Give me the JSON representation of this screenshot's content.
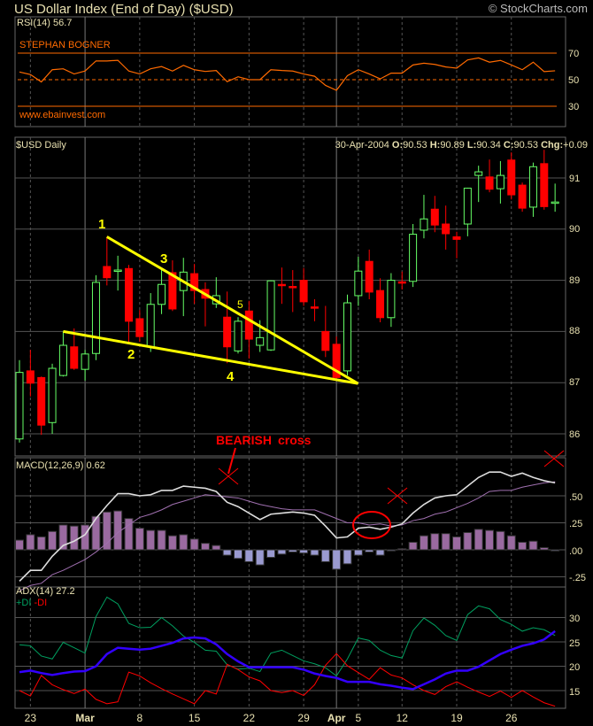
{
  "header": {
    "title": "US Dollar Index (End of Day) ($USD)",
    "copyright": "© StockCharts.com"
  },
  "colors": {
    "background": "#000000",
    "up": "#66ff66",
    "down": "#ff0000",
    "rsi": "#ff6a00",
    "macd": "#dddddd",
    "signal": "#a070b0",
    "histogram_positive": "#9a6aa0",
    "histogram_negative": "#9a9ad0",
    "adx": "#3300ff",
    "plus_di": "#00a060",
    "minus_di": "#ff0000",
    "trendline": "#ffff00",
    "grid": "#555555"
  },
  "chart_data": [
    {
      "type": "line",
      "title": "RSI(14) 56.7",
      "annotations": [
        "STEPHAN BOGNER",
        "www.ebainvest.com"
      ],
      "ylim": [
        10,
        90
      ],
      "reference_lines": [
        70,
        50,
        30
      ],
      "yticks": [
        "70",
        "50",
        "30"
      ],
      "values": [
        55.8,
        53.9,
        48.3,
        57.5,
        58.2,
        54.3,
        56.5,
        64.1,
        64.1,
        64.6,
        56.5,
        54.3,
        58.2,
        59.9,
        56.5,
        60.8,
        57.5,
        56.2,
        56.9,
        48.5,
        52.2,
        50.0,
        50.0,
        57.5,
        56.9,
        56.5,
        54.3,
        52.6,
        45.7,
        42.0,
        53.0,
        57.5,
        54.3,
        50.6,
        54.9,
        54.9,
        61.1,
        62.4,
        61.5,
        59.6,
        58.7,
        64.9,
        66.4,
        63.2,
        64.5,
        61.1,
        57.5,
        63.2,
        56.1,
        56.7
      ]
    },
    {
      "type": "candlestick",
      "title": "$USD Daily",
      "quote": {
        "date": "30-Apr-2004",
        "o_label": "O:",
        "o": "90.53",
        "h_label": "H:",
        "h": "90.89",
        "l_label": "L:",
        "l": "90.34",
        "c_label": "C:",
        "c": "90.53",
        "chg_label": "Chg:",
        "chg": "+0.09"
      },
      "ylim": [
        85.7,
        91.6
      ],
      "yticks": [
        "91",
        "90",
        "89",
        "88",
        "87",
        "86"
      ],
      "grid": true,
      "ohlc": [
        [
          85.9,
          87.44,
          85.83,
          87.2
        ],
        [
          87.23,
          87.64,
          86.73,
          86.99
        ],
        [
          87.1,
          87.12,
          85.98,
          86.17
        ],
        [
          86.22,
          87.37,
          86.0,
          87.28
        ],
        [
          87.14,
          88.0,
          87.12,
          87.73
        ],
        [
          87.7,
          88.06,
          87.25,
          87.28
        ],
        [
          87.26,
          87.64,
          87.04,
          87.56
        ],
        [
          87.57,
          89.1,
          87.44,
          88.96
        ],
        [
          89.27,
          89.85,
          88.9,
          89.05
        ],
        [
          89.2,
          89.48,
          88.8,
          89.2
        ],
        [
          89.23,
          89.3,
          87.8,
          88.2
        ],
        [
          88.25,
          88.42,
          87.8,
          87.9
        ],
        [
          87.7,
          88.75,
          87.6,
          88.53
        ],
        [
          88.53,
          89.2,
          88.34,
          88.92
        ],
        [
          89.15,
          89.39,
          88.4,
          88.44
        ],
        [
          88.8,
          89.44,
          88.3,
          89.16
        ],
        [
          89.13,
          89.32,
          88.54,
          88.8
        ],
        [
          88.82,
          88.96,
          88.1,
          88.65
        ],
        [
          88.54,
          89.06,
          88.46,
          88.7
        ],
        [
          88.28,
          88.78,
          87.38,
          87.7
        ],
        [
          87.62,
          88.28,
          87.57,
          88.2
        ],
        [
          88.4,
          88.6,
          87.47,
          87.85
        ],
        [
          87.73,
          88.22,
          87.6,
          87.88
        ],
        [
          87.64,
          89.0,
          87.62,
          88.99
        ],
        [
          88.92,
          89.25,
          88.54,
          88.9
        ],
        [
          88.88,
          89.2,
          88.38,
          88.87
        ],
        [
          89.0,
          89.24,
          88.5,
          88.58
        ],
        [
          88.48,
          88.63,
          88.2,
          88.47
        ],
        [
          88.0,
          88.5,
          87.5,
          87.63
        ],
        [
          87.75,
          87.9,
          87.08,
          87.1
        ],
        [
          87.23,
          88.72,
          87.14,
          88.56
        ],
        [
          88.7,
          89.46,
          88.5,
          89.18
        ],
        [
          89.37,
          89.6,
          88.63,
          88.77
        ],
        [
          88.8,
          89.04,
          88.18,
          88.27
        ],
        [
          88.27,
          89.14,
          88.09,
          89.0
        ],
        [
          88.97,
          89.17,
          88.82,
          88.96
        ],
        [
          88.98,
          90.1,
          88.87,
          89.9
        ],
        [
          89.98,
          90.67,
          89.82,
          90.2
        ],
        [
          90.39,
          90.65,
          89.94,
          90.08
        ],
        [
          90.1,
          90.46,
          89.6,
          89.91
        ],
        [
          89.85,
          89.95,
          89.43,
          89.8
        ],
        [
          90.1,
          90.81,
          89.86,
          90.8
        ],
        [
          91.05,
          91.24,
          90.53,
          91.12
        ],
        [
          91.02,
          91.36,
          90.72,
          90.78
        ],
        [
          90.79,
          91.33,
          90.5,
          91.05
        ],
        [
          91.35,
          91.5,
          90.58,
          90.67
        ],
        [
          90.86,
          90.91,
          90.34,
          90.41
        ],
        [
          90.43,
          91.3,
          90.24,
          91.22
        ],
        [
          91.28,
          91.55,
          90.38,
          90.44
        ],
        [
          90.53,
          90.89,
          90.34,
          90.53
        ]
      ],
      "filled_up_indices": [
        8
      ],
      "annotations": {
        "wave_labels": [
          "1",
          "2",
          "3",
          "4",
          "5"
        ],
        "upper_trendline": {
          "from_index": 8,
          "from_price": 89.85,
          "to_index": 30,
          "to_price": 87.0
        },
        "lower_trendline": {
          "from_index": 4,
          "from_price": 88.0,
          "to_index": 30,
          "to_price": 87.0
        }
      }
    },
    {
      "type": "bar+line",
      "title": "MACD(12,26,9) 0.62",
      "ylim": [
        -0.33,
        0.85
      ],
      "yticks": [
        ".50",
        ".25",
        ".00",
        "-.25"
      ],
      "annotations": {
        "bearish_label": "BEARISH",
        "cross_label": "cross"
      },
      "macd": [
        -0.29,
        -0.19,
        -0.19,
        -0.06,
        0.04,
        0.08,
        0.14,
        0.29,
        0.41,
        0.52,
        0.52,
        0.5,
        0.51,
        0.55,
        0.55,
        0.59,
        0.58,
        0.57,
        0.54,
        0.44,
        0.4,
        0.34,
        0.28,
        0.33,
        0.34,
        0.35,
        0.34,
        0.32,
        0.22,
        0.11,
        0.12,
        0.2,
        0.21,
        0.19,
        0.21,
        0.24,
        0.34,
        0.42,
        0.48,
        0.5,
        0.51,
        0.59,
        0.67,
        0.72,
        0.72,
        0.68,
        0.71,
        0.67,
        0.64,
        0.62
      ],
      "signal": [
        -0.38,
        -0.33,
        -0.31,
        -0.23,
        -0.19,
        -0.14,
        -0.09,
        -0.02,
        0.06,
        0.16,
        0.23,
        0.3,
        0.33,
        0.37,
        0.42,
        0.45,
        0.48,
        0.51,
        0.5,
        0.49,
        0.48,
        0.45,
        0.42,
        0.4,
        0.38,
        0.37,
        0.37,
        0.37,
        0.33,
        0.29,
        0.25,
        0.25,
        0.23,
        0.24,
        0.22,
        0.23,
        0.27,
        0.29,
        0.33,
        0.35,
        0.39,
        0.43,
        0.48,
        0.54,
        0.55,
        0.55,
        0.58,
        0.6,
        0.62,
        0.63
      ],
      "histogram": [
        0.09,
        0.14,
        0.12,
        0.17,
        0.23,
        0.22,
        0.23,
        0.31,
        0.35,
        0.36,
        0.29,
        0.2,
        0.18,
        0.18,
        0.13,
        0.14,
        0.1,
        0.06,
        0.04,
        -0.05,
        -0.08,
        -0.11,
        -0.14,
        -0.07,
        -0.04,
        -0.02,
        -0.03,
        -0.05,
        -0.11,
        -0.18,
        -0.13,
        -0.05,
        -0.02,
        -0.05,
        -0.01,
        0.01,
        0.07,
        0.13,
        0.15,
        0.15,
        0.12,
        0.16,
        0.19,
        0.18,
        0.17,
        0.13,
        0.07,
        0.08,
        0.02,
        -0.01
      ]
    },
    {
      "type": "line",
      "title": "ADX(14) 27.2",
      "legend": {
        "plus_di": "+DI",
        "minus_di": "-DI"
      },
      "ylim": [
        10,
        36
      ],
      "yticks": [
        "30",
        "25",
        "20",
        "15"
      ],
      "adx": [
        18.8,
        19.1,
        18.6,
        18.2,
        18.6,
        18.9,
        19.0,
        20.0,
        22.5,
        23.8,
        23.6,
        23.4,
        23.6,
        24.2,
        24.8,
        25.7,
        25.9,
        25.7,
        24.5,
        22.5,
        21.0,
        19.8,
        19.8,
        19.8,
        19.8,
        19.8,
        19.3,
        18.5,
        18.0,
        17.6,
        16.8,
        16.8,
        16.8,
        16.3,
        16.0,
        15.6,
        15.3,
        16.3,
        17.3,
        18.5,
        19.1,
        19.1,
        19.9,
        21.2,
        22.5,
        23.4,
        24.2,
        24.7,
        25.5,
        27.2
      ],
      "plus_di": [
        24.4,
        24.2,
        22.1,
        21.5,
        24.9,
        23.8,
        22.7,
        30.2,
        34.2,
        32.8,
        28.8,
        27.9,
        28.0,
        30.0,
        28.3,
        26.2,
        24.9,
        23.3,
        23.1,
        20.3,
        19.4,
        19.6,
        18.9,
        22.7,
        23.3,
        22.2,
        21.1,
        20.5,
        19.7,
        18.0,
        21.5,
        25.8,
        25.3,
        23.3,
        22.2,
        21.7,
        27.3,
        29.9,
        28.4,
        26.3,
        25.3,
        30.6,
        32.4,
        31.8,
        29.6,
        28.6,
        27.2,
        27.9,
        27.5,
        26.3
      ],
      "minus_di": [
        15.0,
        13.9,
        18.1,
        16.2,
        15.2,
        14.4,
        15.3,
        13.2,
        12.3,
        12.7,
        18.8,
        18.0,
        16.6,
        15.4,
        14.3,
        13.3,
        12.3,
        15.0,
        14.3,
        20.4,
        19.3,
        17.8,
        17.0,
        15.0,
        14.6,
        15.0,
        14.0,
        16.2,
        20.2,
        22.6,
        20.1,
        18.7,
        17.3,
        19.7,
        18.2,
        17.6,
        16.2,
        15.0,
        14.2,
        15.8,
        16.8,
        15.7,
        14.7,
        13.8,
        14.9,
        13.6,
        15.0,
        13.7,
        12.5,
        11.8
      ]
    }
  ],
  "x_axis": {
    "labels": [
      {
        "text": "23",
        "index": 1,
        "month": false
      },
      {
        "text": "Mar",
        "index": 6,
        "month": true
      },
      {
        "text": "8",
        "index": 11,
        "month": false
      },
      {
        "text": "15",
        "index": 16,
        "month": false
      },
      {
        "text": "22",
        "index": 21,
        "month": false
      },
      {
        "text": "29",
        "index": 26,
        "month": false
      },
      {
        "text": "Apr",
        "index": 29,
        "month": true
      },
      {
        "text": "5",
        "index": 31,
        "month": false
      },
      {
        "text": "12",
        "index": 35,
        "month": false
      },
      {
        "text": "19",
        "index": 40,
        "month": false
      },
      {
        "text": "26",
        "index": 45,
        "month": false
      }
    ]
  }
}
